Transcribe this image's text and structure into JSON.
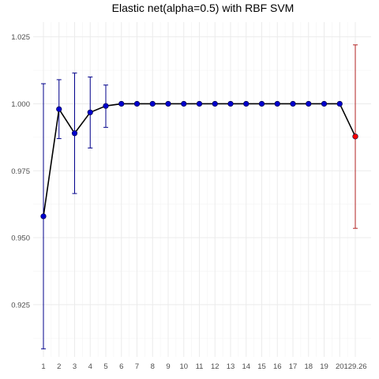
{
  "chart_data": {
    "type": "line",
    "title": "Elastic net(alpha=0.5) with RBF SVM",
    "xlabel": "",
    "ylabel": "",
    "x_tick_labels": [
      "1",
      "2",
      "3",
      "4",
      "5",
      "6",
      "7",
      "8",
      "9",
      "10",
      "11",
      "12",
      "13",
      "14",
      "15",
      "16",
      "17",
      "18",
      "19",
      "20",
      "129.26"
    ],
    "y_ticks": [
      0.925,
      0.95,
      0.975,
      1.0,
      1.025
    ],
    "y_tick_labels": [
      "0.925",
      "0.950",
      "0.975",
      "1.000",
      "1.025"
    ],
    "ylim": [
      0.9055,
      1.0305
    ],
    "grid": true,
    "legend": "none",
    "series": [
      {
        "color": "#0000cd",
        "line_color": "#000000",
        "errorbar_color": "#00008b",
        "x": [
          1,
          2,
          3,
          4,
          5,
          6,
          7,
          8,
          9,
          10,
          11,
          12,
          13,
          14,
          15,
          16,
          17,
          18,
          19,
          20
        ],
        "values": [
          0.958,
          0.998,
          0.989,
          0.9968,
          0.9992,
          1.0,
          1.0,
          1.0,
          1.0,
          1.0,
          1.0,
          1.0,
          1.0,
          1.0,
          1.0,
          1.0,
          1.0,
          1.0,
          1.0,
          1.0
        ],
        "lower": [
          0.9085,
          0.987,
          0.9665,
          0.9835,
          0.9912,
          1.0,
          1.0,
          1.0,
          1.0,
          1.0,
          1.0,
          1.0,
          1.0,
          1.0,
          1.0,
          1.0,
          1.0,
          1.0,
          1.0,
          1.0
        ],
        "upper": [
          1.0075,
          1.009,
          1.0115,
          1.01,
          1.007,
          1.0,
          1.0,
          1.0,
          1.0,
          1.0,
          1.0,
          1.0,
          1.0,
          1.0,
          1.0,
          1.0,
          1.0,
          1.0,
          1.0,
          1.0
        ]
      },
      {
        "color": "#ff0000",
        "errorbar_color": "#b22222",
        "x": [
          21
        ],
        "values": [
          0.9878
        ],
        "lower": [
          0.9535
        ],
        "upper": [
          1.022
        ]
      }
    ]
  }
}
